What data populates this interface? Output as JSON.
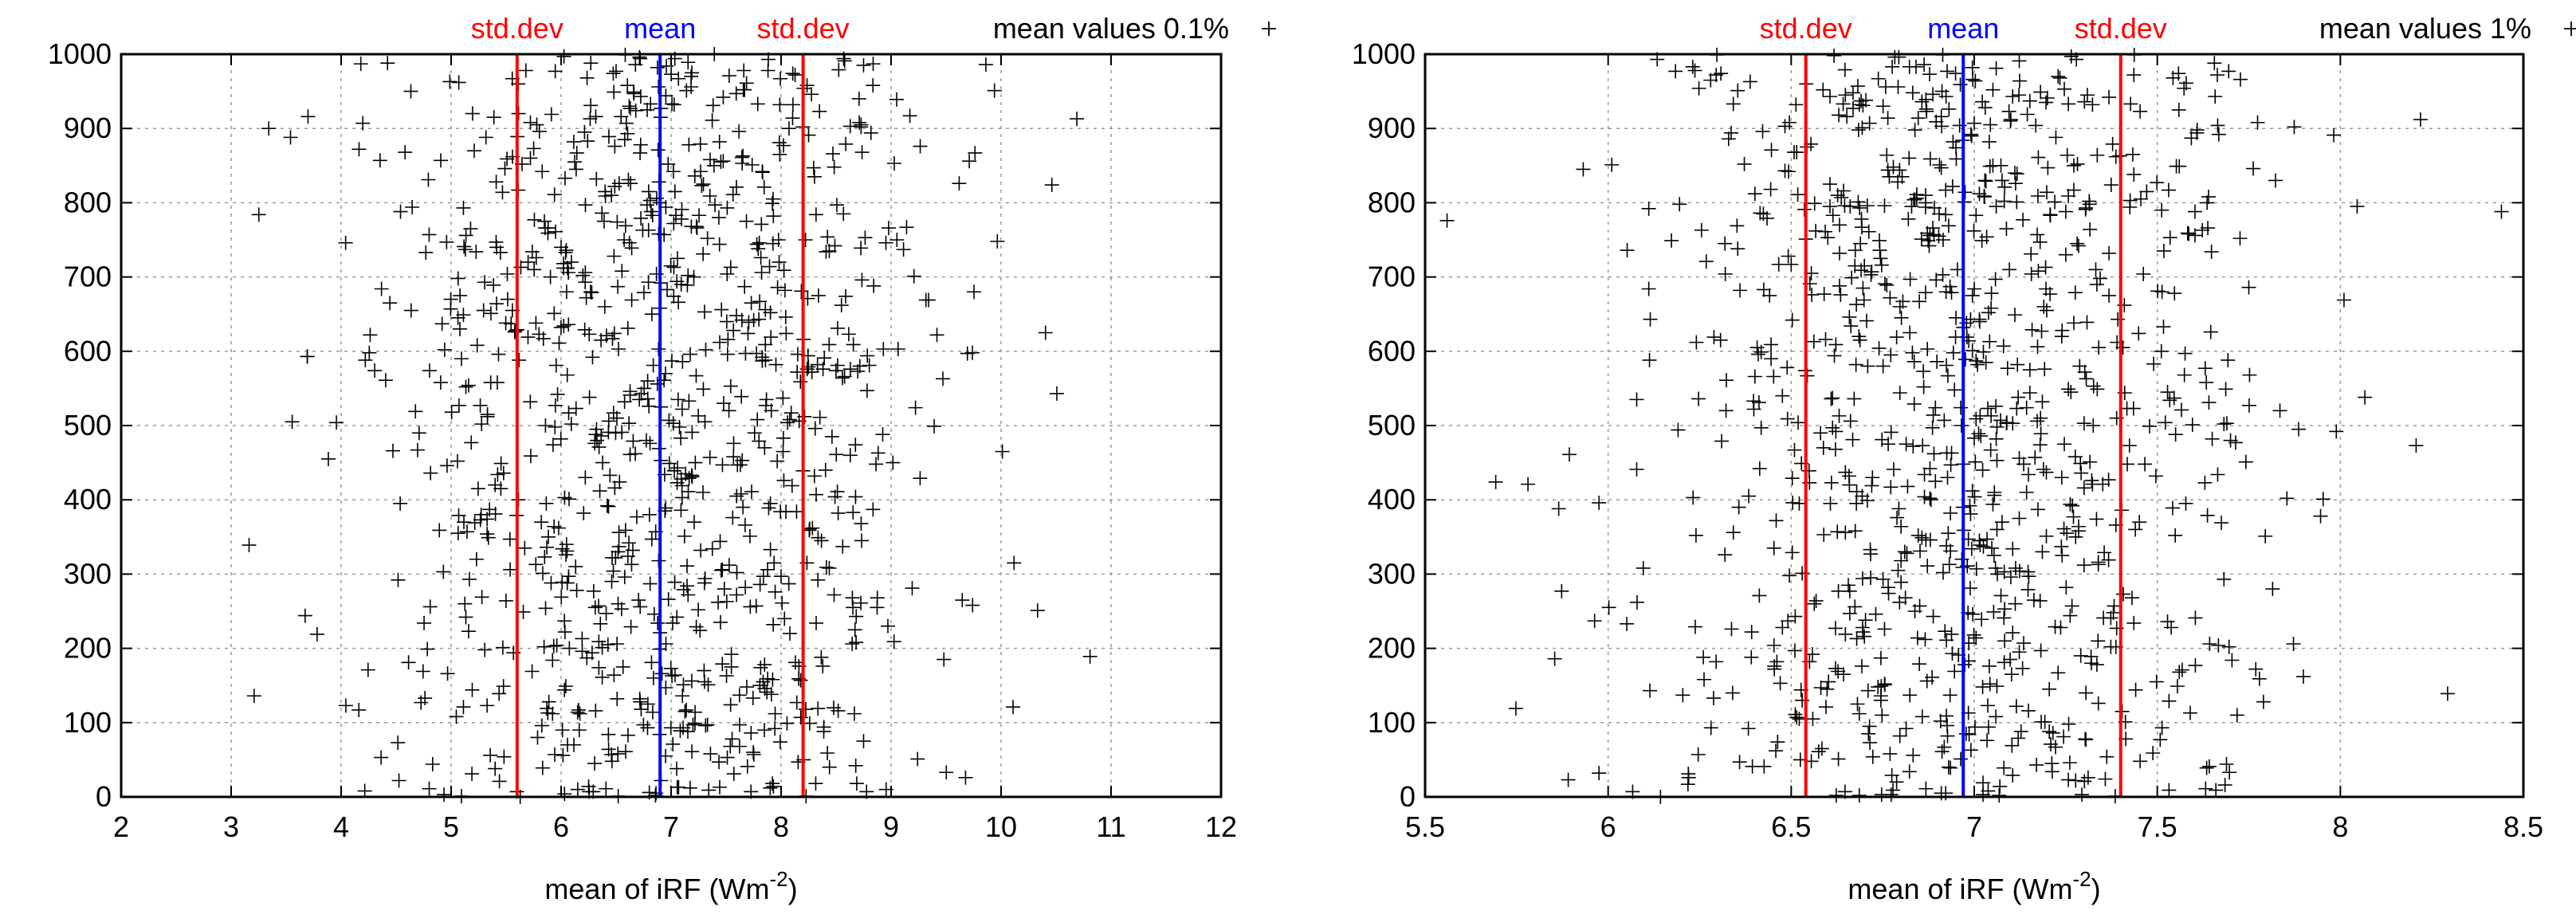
{
  "chart_data": [
    {
      "type": "scatter",
      "title": "",
      "xlabel": "mean of iRF (Wm",
      "xlabel_sup": "-2",
      "xlabel_close": ")",
      "ylabel": "",
      "xlim": [
        2,
        12
      ],
      "ylim": [
        0,
        1000
      ],
      "x_ticks": [
        2,
        3,
        4,
        5,
        6,
        7,
        8,
        9,
        10,
        11,
        12
      ],
      "x_tick_labels": [
        "2",
        "3",
        "4",
        "5",
        "6",
        "7",
        "8",
        "9",
        "10",
        "11",
        "12"
      ],
      "y_ticks": [
        0,
        100,
        200,
        300,
        400,
        500,
        600,
        700,
        800,
        900,
        1000
      ],
      "y_tick_labels": [
        "0",
        "100",
        "200",
        "300",
        "400",
        "500",
        "600",
        "700",
        "800",
        "900",
        "1000"
      ],
      "grid": true,
      "legend_position": "top-right",
      "series": [
        {
          "name": "mean values 0.1%",
          "marker": "plus",
          "color": "#000000",
          "n_points": 1000,
          "mean": 6.9,
          "std": 1.3,
          "points": []
        }
      ],
      "vlines": [
        {
          "label": "std.dev",
          "x": 5.6,
          "color": "#ff0000"
        },
        {
          "label": "mean",
          "x": 6.9,
          "color": "#0000ff"
        },
        {
          "label": "std.dev",
          "x": 8.2,
          "color": "#ff0000"
        }
      ]
    },
    {
      "type": "scatter",
      "title": "",
      "xlabel": "mean of iRF (Wm",
      "xlabel_sup": "-2",
      "xlabel_close": ")",
      "ylabel": "",
      "xlim": [
        5.5,
        8.5
      ],
      "ylim": [
        0,
        1000
      ],
      "x_ticks": [
        5.5,
        6,
        6.5,
        7,
        7.5,
        8,
        8.5
      ],
      "x_tick_labels": [
        "5.5",
        "6",
        "6.5",
        "7",
        "7.5",
        "8",
        "8.5"
      ],
      "y_ticks": [
        0,
        100,
        200,
        300,
        400,
        500,
        600,
        700,
        800,
        900,
        1000
      ],
      "y_tick_labels": [
        "0",
        "100",
        "200",
        "300",
        "400",
        "500",
        "600",
        "700",
        "800",
        "900",
        "1000"
      ],
      "grid": true,
      "legend_position": "top-right",
      "series": [
        {
          "name": "mean values 1%",
          "marker": "plus",
          "color": "#000000",
          "n_points": 1000,
          "mean": 6.97,
          "std": 0.43,
          "points": []
        }
      ],
      "vlines": [
        {
          "label": "std.dev",
          "x": 6.54,
          "color": "#ff0000"
        },
        {
          "label": "mean",
          "x": 6.97,
          "color": "#0000ff"
        },
        {
          "label": "std.dev",
          "x": 7.4,
          "color": "#ff0000"
        }
      ]
    }
  ]
}
